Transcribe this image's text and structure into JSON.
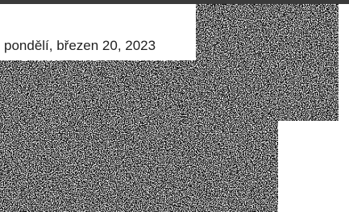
{
  "date_text": "pondělí, březen 20, 2023"
}
